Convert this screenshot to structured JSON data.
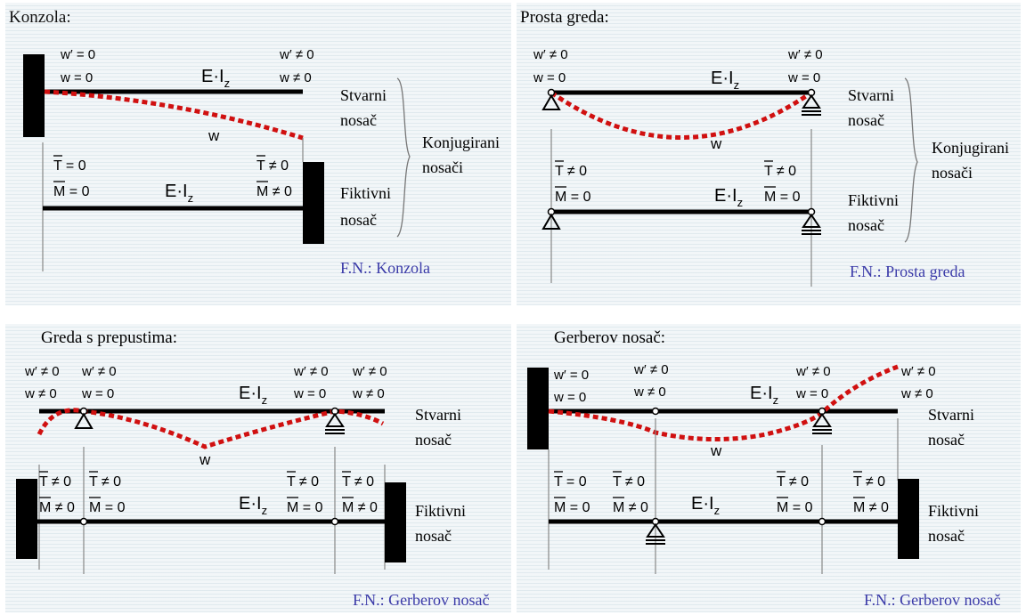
{
  "panels": [
    {
      "title": "Konzola:",
      "caption": "F.N.: Konzola",
      "labels": {
        "left_wp": "w′ = 0",
        "left_w": "w = 0",
        "right_wp": "w′ ≠ 0",
        "right_w": "w ≠ 0",
        "ei_top": "E·I",
        "ei_top_sub": "z",
        "w_curve": "w",
        "left_T": "T = 0",
        "left_M": "M = 0",
        "right_T": "T ≠ 0",
        "right_M": "M ≠ 0",
        "ei_bot": "E·I",
        "ei_bot_sub": "z",
        "stvarni1": "Stvarni",
        "stvarni2": "nosač",
        "fiktivni1": "Fiktivni",
        "fiktivni2": "nosač",
        "konj1": "Konjugirani",
        "konj2": "nosači"
      }
    },
    {
      "title": "Prosta greda:",
      "caption": "F.N.: Prosta greda",
      "labels": {
        "left_wp": "w′ ≠ 0",
        "left_w": "w = 0",
        "right_wp": "w′ ≠ 0",
        "right_w": "w = 0",
        "ei_top": "E·I",
        "ei_top_sub": "z",
        "w_curve": "w",
        "left_T": "T ≠ 0",
        "left_M": "M = 0",
        "right_T": "T ≠ 0",
        "right_M": "M = 0",
        "ei_bot": "E·I",
        "ei_bot_sub": "z",
        "stvarni1": "Stvarni",
        "stvarni2": "nosač",
        "fiktivni1": "Fiktivni",
        "fiktivni2": "nosač",
        "konj1": "Konjugirani",
        "konj2": "nosači"
      }
    },
    {
      "title": "Greda s prepustima:",
      "caption": "F.N.: Gerberov nosač",
      "labels": {
        "c1_wp": "w′ ≠ 0",
        "c1_w": "w ≠ 0",
        "c2_wp": "w′ ≠ 0",
        "c2_w": "w = 0",
        "c3_wp": "w′ ≠ 0",
        "c3_w": "w = 0",
        "c4_wp": "w′ ≠ 0",
        "c4_w": "w ≠ 0",
        "ei_top": "E·I",
        "ei_top_sub": "z",
        "w_curve": "w",
        "b1_T": "T ≠ 0",
        "b1_M": "M ≠ 0",
        "b2_T": "T ≠ 0",
        "b2_M": "M = 0",
        "b3_T": "T ≠ 0",
        "b3_M": "M = 0",
        "b4_T": "T ≠ 0",
        "b4_M": "M ≠ 0",
        "ei_bot": "E·I",
        "ei_bot_sub": "z",
        "stvarni1": "Stvarni",
        "stvarni2": "nosač",
        "fiktivni1": "Fiktivni",
        "fiktivni2": "nosač"
      }
    },
    {
      "title": "Gerberov nosač:",
      "caption": "F.N.: Gerberov nosač",
      "labels": {
        "c1_wp": "w′ = 0",
        "c1_w": "w = 0",
        "c2_wp": "w′ ≠ 0",
        "c2_w": "w ≠ 0",
        "c3_wp": "w′ ≠ 0",
        "c3_w": "w = 0",
        "c4_wp": "w′ ≠ 0",
        "c4_w": "w ≠ 0",
        "ei_top": "E·I",
        "ei_top_sub": "z",
        "w_curve": "w",
        "b1_T": "T = 0",
        "b1_M": "M = 0",
        "b2_T": "T ≠ 0",
        "b2_M": "M ≠ 0",
        "b3_T": "T ≠ 0",
        "b3_M": "M = 0",
        "b4_T": "T ≠ 0",
        "b4_M": "M ≠ 0",
        "ei_bot": "E·I",
        "ei_bot_sub": "z",
        "stvarni1": "Stvarni",
        "stvarni2": "nosač",
        "fiktivni1": "Fiktivni",
        "fiktivni2": "nosač"
      }
    }
  ],
  "colors": {
    "beam": "#000000",
    "deflection": "#d01010",
    "caption": "#3a3aa8",
    "text": "#111111"
  }
}
